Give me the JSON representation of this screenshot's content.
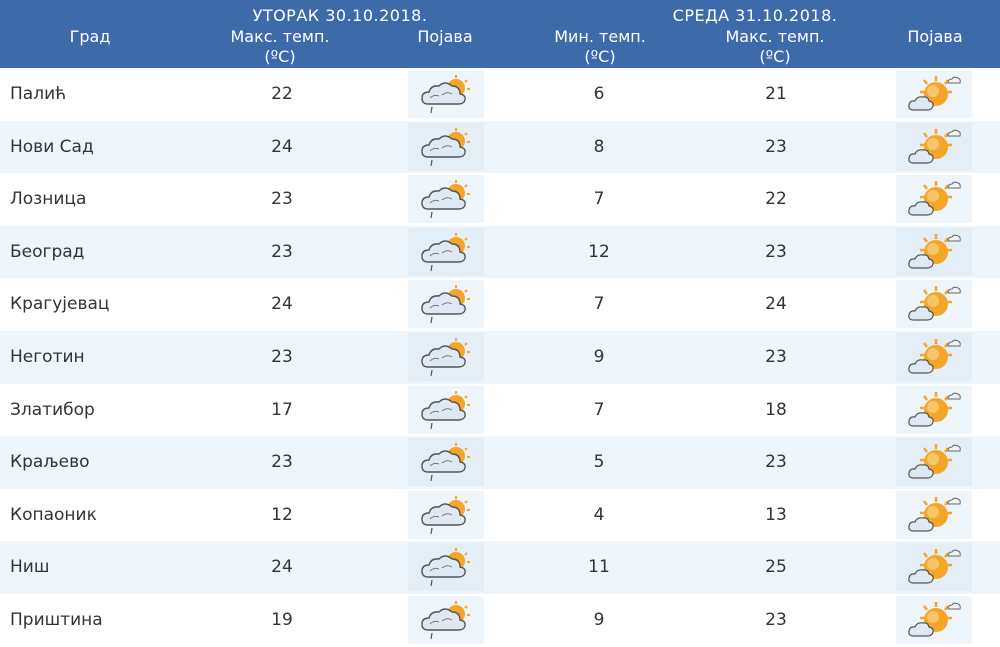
{
  "header": {
    "city_label": "Град",
    "day1": "УТОРАК  30.10.2018.",
    "day2": "СРЕДА  31.10.2018.",
    "max_temp_label": "Макс. темп.",
    "min_temp_label": "Мин. темп.",
    "unit": "(ºC)",
    "phenomenon_label": "Појава"
  },
  "icons": {
    "day1": "partly-cloudy-rain-icon",
    "day2": "sunny-cloudy-icon"
  },
  "colors": {
    "header_bg": "#3d6aa8",
    "row_alt": "#eef5fb",
    "sun": "#f4a52a",
    "cloud": "#cfe0ef"
  },
  "rows": [
    {
      "city": "Палић",
      "d1_max": "22",
      "d2_min": "6",
      "d2_max": "21"
    },
    {
      "city": "Нови Сад",
      "d1_max": "24",
      "d2_min": "8",
      "d2_max": "23"
    },
    {
      "city": "Лозница",
      "d1_max": "23",
      "d2_min": "7",
      "d2_max": "22"
    },
    {
      "city": "Београд",
      "d1_max": "23",
      "d2_min": "12",
      "d2_max": "23"
    },
    {
      "city": "Крагујевац",
      "d1_max": "24",
      "d2_min": "7",
      "d2_max": "24"
    },
    {
      "city": "Неготин",
      "d1_max": "23",
      "d2_min": "9",
      "d2_max": "23"
    },
    {
      "city": "Златибор",
      "d1_max": "17",
      "d2_min": "7",
      "d2_max": "18"
    },
    {
      "city": "Краљево",
      "d1_max": "23",
      "d2_min": "5",
      "d2_max": "23"
    },
    {
      "city": "Копаоник",
      "d1_max": "12",
      "d2_min": "4",
      "d2_max": "13"
    },
    {
      "city": "Ниш",
      "d1_max": "24",
      "d2_min": "11",
      "d2_max": "25"
    },
    {
      "city": "Приштина",
      "d1_max": "19",
      "d2_min": "9",
      "d2_max": "23"
    }
  ]
}
